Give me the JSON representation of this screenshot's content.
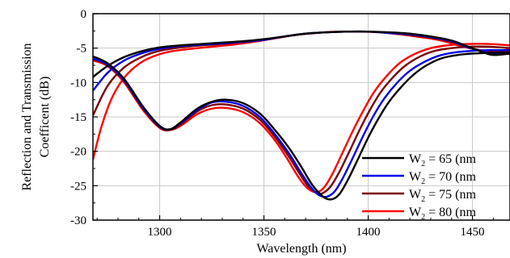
{
  "chart_data": {
    "type": "line",
    "title": "",
    "xlabel": "Wavelength (nm)",
    "ylabel_line1": "Reflection and Transmission",
    "ylabel_line2": "Coefficent (dB)",
    "xlim": [
      1268,
      1468
    ],
    "ylim": [
      -30,
      0
    ],
    "xticks": [
      1300,
      1350,
      1400,
      1450
    ],
    "yticks": [
      0,
      -5,
      -10,
      -15,
      -20,
      -25,
      -30
    ],
    "grid": true,
    "legend_position": "bottom-right",
    "series": [
      {
        "name": "W2 = 65 (nm",
        "legend_main": "W",
        "legend_sub": "2",
        "legend_rest": " = 65 (nm",
        "color": "#000000",
        "transmission": [
          [
            1268,
            -6.2
          ],
          [
            1275,
            -7.2
          ],
          [
            1283,
            -9.5
          ],
          [
            1292,
            -13.5
          ],
          [
            1300,
            -16.3
          ],
          [
            1305,
            -16.8
          ],
          [
            1310,
            -15.8
          ],
          [
            1318,
            -13.8
          ],
          [
            1325,
            -12.8
          ],
          [
            1332,
            -12.5
          ],
          [
            1340,
            -13.0
          ],
          [
            1348,
            -14.5
          ],
          [
            1355,
            -16.8
          ],
          [
            1362,
            -19.5
          ],
          [
            1368,
            -22.3
          ],
          [
            1373,
            -24.8
          ],
          [
            1378,
            -26.5
          ],
          [
            1382,
            -27.0
          ],
          [
            1386,
            -26.3
          ],
          [
            1390,
            -24.3
          ],
          [
            1395,
            -21.2
          ],
          [
            1400,
            -18.0
          ],
          [
            1405,
            -15.2
          ],
          [
            1410,
            -12.8
          ],
          [
            1416,
            -10.6
          ],
          [
            1422,
            -8.8
          ],
          [
            1428,
            -7.5
          ],
          [
            1435,
            -6.5
          ],
          [
            1443,
            -6.0
          ],
          [
            1450,
            -5.8
          ],
          [
            1458,
            -5.7
          ],
          [
            1468,
            -5.6
          ]
        ],
        "reflection": [
          [
            1268,
            -9.2
          ],
          [
            1275,
            -7.6
          ],
          [
            1283,
            -6.3
          ],
          [
            1292,
            -5.4
          ],
          [
            1300,
            -4.9
          ],
          [
            1310,
            -4.6
          ],
          [
            1320,
            -4.4
          ],
          [
            1330,
            -4.2
          ],
          [
            1340,
            -4.0
          ],
          [
            1350,
            -3.7
          ],
          [
            1360,
            -3.3
          ],
          [
            1370,
            -2.9
          ],
          [
            1380,
            -2.7
          ],
          [
            1390,
            -2.6
          ],
          [
            1400,
            -2.6
          ],
          [
            1410,
            -2.7
          ],
          [
            1420,
            -2.9
          ],
          [
            1430,
            -3.3
          ],
          [
            1440,
            -3.9
          ],
          [
            1448,
            -4.8
          ],
          [
            1455,
            -5.6
          ],
          [
            1460,
            -6.0
          ],
          [
            1468,
            -5.8
          ]
        ]
      },
      {
        "name": "W2 = 70 (nm",
        "legend_main": "W",
        "legend_sub": "2",
        "legend_rest": " = 70 (nm",
        "color": "#0000e6",
        "transmission": [
          [
            1268,
            -6.5
          ],
          [
            1275,
            -7.4
          ],
          [
            1283,
            -9.7
          ],
          [
            1292,
            -13.7
          ],
          [
            1300,
            -16.4
          ],
          [
            1305,
            -16.8
          ],
          [
            1310,
            -15.9
          ],
          [
            1318,
            -14.0
          ],
          [
            1325,
            -12.9
          ],
          [
            1332,
            -12.8
          ],
          [
            1340,
            -13.4
          ],
          [
            1348,
            -15.0
          ],
          [
            1355,
            -17.4
          ],
          [
            1362,
            -20.3
          ],
          [
            1368,
            -23.2
          ],
          [
            1372,
            -25.0
          ],
          [
            1376,
            -26.3
          ],
          [
            1380,
            -26.6
          ],
          [
            1384,
            -25.8
          ],
          [
            1388,
            -23.8
          ],
          [
            1393,
            -20.7
          ],
          [
            1398,
            -17.5
          ],
          [
            1403,
            -14.6
          ],
          [
            1408,
            -12.2
          ],
          [
            1414,
            -10.0
          ],
          [
            1420,
            -8.3
          ],
          [
            1427,
            -7.0
          ],
          [
            1434,
            -6.1
          ],
          [
            1442,
            -5.6
          ],
          [
            1450,
            -5.4
          ],
          [
            1458,
            -5.3
          ],
          [
            1468,
            -5.3
          ]
        ],
        "reflection": [
          [
            1268,
            -11.2
          ],
          [
            1275,
            -8.6
          ],
          [
            1283,
            -6.8
          ],
          [
            1292,
            -5.7
          ],
          [
            1300,
            -5.1
          ],
          [
            1310,
            -4.7
          ],
          [
            1320,
            -4.5
          ],
          [
            1330,
            -4.3
          ],
          [
            1340,
            -4.1
          ],
          [
            1350,
            -3.8
          ],
          [
            1360,
            -3.3
          ],
          [
            1370,
            -2.9
          ],
          [
            1380,
            -2.7
          ],
          [
            1390,
            -2.6
          ],
          [
            1400,
            -2.6
          ],
          [
            1410,
            -2.8
          ],
          [
            1420,
            -3.0
          ],
          [
            1430,
            -3.4
          ],
          [
            1440,
            -4.0
          ],
          [
            1448,
            -4.9
          ],
          [
            1455,
            -5.5
          ],
          [
            1460,
            -5.8
          ],
          [
            1468,
            -5.7
          ]
        ]
      },
      {
        "name": "W2 = 75 (nm",
        "legend_main": "W",
        "legend_sub": "2",
        "legend_rest": " = 75 (nm",
        "color": "#7a0000",
        "transmission": [
          [
            1268,
            -6.6
          ],
          [
            1275,
            -7.5
          ],
          [
            1283,
            -9.8
          ],
          [
            1292,
            -13.8
          ],
          [
            1300,
            -16.5
          ],
          [
            1305,
            -16.9
          ],
          [
            1310,
            -16.1
          ],
          [
            1318,
            -14.2
          ],
          [
            1325,
            -13.3
          ],
          [
            1332,
            -13.2
          ],
          [
            1340,
            -13.8
          ],
          [
            1348,
            -15.4
          ],
          [
            1355,
            -17.8
          ],
          [
            1362,
            -20.8
          ],
          [
            1367,
            -23.2
          ],
          [
            1371,
            -25.0
          ],
          [
            1375,
            -26.0
          ],
          [
            1378,
            -26.1
          ],
          [
            1382,
            -25.1
          ],
          [
            1386,
            -23.1
          ],
          [
            1391,
            -20.0
          ],
          [
            1396,
            -16.8
          ],
          [
            1401,
            -13.9
          ],
          [
            1406,
            -11.4
          ],
          [
            1412,
            -9.2
          ],
          [
            1418,
            -7.5
          ],
          [
            1425,
            -6.2
          ],
          [
            1432,
            -5.4
          ],
          [
            1440,
            -5.0
          ],
          [
            1448,
            -4.8
          ],
          [
            1458,
            -4.8
          ],
          [
            1468,
            -5.0
          ]
        ],
        "reflection": [
          [
            1268,
            -14.8
          ],
          [
            1275,
            -10.5
          ],
          [
            1283,
            -7.8
          ],
          [
            1292,
            -6.2
          ],
          [
            1300,
            -5.4
          ],
          [
            1310,
            -4.9
          ],
          [
            1320,
            -4.6
          ],
          [
            1330,
            -4.4
          ],
          [
            1340,
            -4.1
          ],
          [
            1350,
            -3.8
          ],
          [
            1360,
            -3.3
          ],
          [
            1370,
            -2.9
          ],
          [
            1380,
            -2.7
          ],
          [
            1390,
            -2.6
          ],
          [
            1400,
            -2.6
          ],
          [
            1410,
            -2.8
          ],
          [
            1420,
            -3.1
          ],
          [
            1430,
            -3.5
          ],
          [
            1440,
            -4.1
          ],
          [
            1448,
            -4.9
          ],
          [
            1455,
            -5.4
          ],
          [
            1460,
            -5.6
          ],
          [
            1468,
            -5.5
          ]
        ]
      },
      {
        "name": "W2 = 80 (nm",
        "legend_main": "W",
        "legend_sub": "2",
        "legend_rest": " = 80 (nm",
        "color": "#ff0000",
        "transmission": [
          [
            1268,
            -6.8
          ],
          [
            1275,
            -7.6
          ],
          [
            1283,
            -10.0
          ],
          [
            1292,
            -14.0
          ],
          [
            1300,
            -16.6
          ],
          [
            1305,
            -16.9
          ],
          [
            1310,
            -16.3
          ],
          [
            1318,
            -14.6
          ],
          [
            1325,
            -13.8
          ],
          [
            1332,
            -13.7
          ],
          [
            1340,
            -14.3
          ],
          [
            1348,
            -15.9
          ],
          [
            1355,
            -18.3
          ],
          [
            1361,
            -21.0
          ],
          [
            1366,
            -23.5
          ],
          [
            1370,
            -25.1
          ],
          [
            1373,
            -25.8
          ],
          [
            1376,
            -25.9
          ],
          [
            1379,
            -25.2
          ],
          [
            1383,
            -23.2
          ],
          [
            1388,
            -20.0
          ],
          [
            1393,
            -16.8
          ],
          [
            1398,
            -13.9
          ],
          [
            1403,
            -11.3
          ],
          [
            1409,
            -9.0
          ],
          [
            1415,
            -7.2
          ],
          [
            1422,
            -5.9
          ],
          [
            1430,
            -5.0
          ],
          [
            1438,
            -4.6
          ],
          [
            1448,
            -4.4
          ],
          [
            1458,
            -4.4
          ],
          [
            1468,
            -4.6
          ]
        ],
        "reflection": [
          [
            1268,
            -21.2
          ],
          [
            1272,
            -16.5
          ],
          [
            1277,
            -12.3
          ],
          [
            1283,
            -9.3
          ],
          [
            1290,
            -7.3
          ],
          [
            1297,
            -6.2
          ],
          [
            1305,
            -5.5
          ],
          [
            1315,
            -5.1
          ],
          [
            1325,
            -4.8
          ],
          [
            1335,
            -4.5
          ],
          [
            1345,
            -4.1
          ],
          [
            1355,
            -3.6
          ],
          [
            1365,
            -3.1
          ],
          [
            1375,
            -2.8
          ],
          [
            1385,
            -2.6
          ],
          [
            1395,
            -2.6
          ],
          [
            1405,
            -2.7
          ],
          [
            1415,
            -3.0
          ],
          [
            1425,
            -3.4
          ],
          [
            1435,
            -3.9
          ],
          [
            1443,
            -4.6
          ],
          [
            1450,
            -5.1
          ],
          [
            1457,
            -5.4
          ],
          [
            1462,
            -5.4
          ],
          [
            1468,
            -5.2
          ]
        ]
      }
    ]
  }
}
